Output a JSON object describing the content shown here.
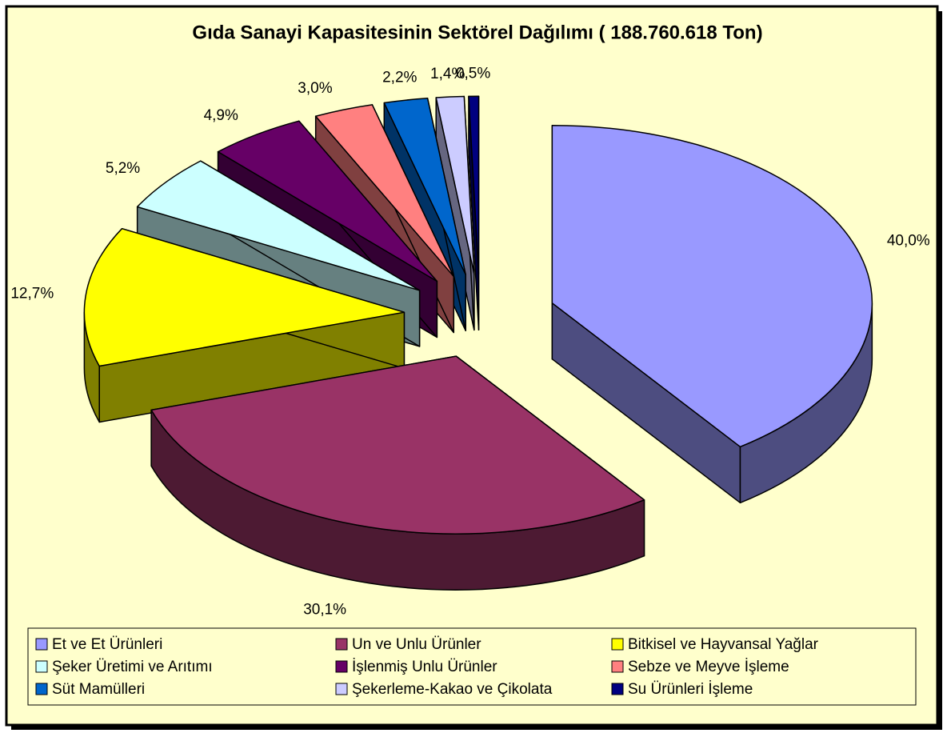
{
  "chart_data": {
    "type": "pie3d",
    "title": "Gıda Sanayi Kapasitesinin Sektörel Dağılımı ( 188.760.618 Ton)",
    "categories": [
      "Et ve Et Ürünleri",
      "Un ve Unlu Ürünler",
      "Bitkisel ve Hayvansal Yağlar",
      "Şeker Üretimi ve Arıtımı",
      "İşlenmiş Unlu Ürünler",
      "Sebze ve Meyve İşleme",
      "Süt Mamülleri",
      "Şekerleme-Kakao ve Çikolata",
      "Su Ürünleri İşleme"
    ],
    "values": [
      40.0,
      30.1,
      12.7,
      5.2,
      4.9,
      3.0,
      2.2,
      1.4,
      0.5
    ],
    "value_labels": [
      "40,0%",
      "30,1%",
      "12,7%",
      "5,2%",
      "4,9%",
      "3,0%",
      "2,2%",
      "1,4%",
      "0,5%"
    ],
    "colors": [
      "#9999ff",
      "#993366",
      "#ffff00",
      "#ccffff",
      "#660066",
      "#ff8080",
      "#0066cc",
      "#ccccff",
      "#000080"
    ],
    "legend": "bottom"
  }
}
